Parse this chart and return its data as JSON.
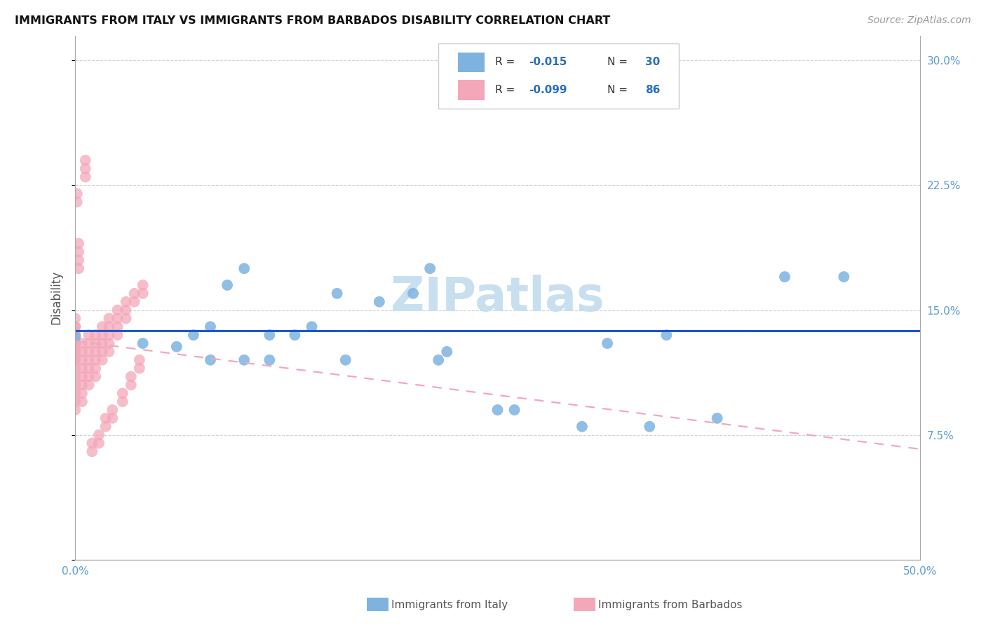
{
  "title": "IMMIGRANTS FROM ITALY VS IMMIGRANTS FROM BARBADOS DISABILITY CORRELATION CHART",
  "source": "Source: ZipAtlas.com",
  "xlabel_italy": "Immigrants from Italy",
  "xlabel_barbados": "Immigrants from Barbados",
  "ylabel": "Disability",
  "xlim": [
    0,
    0.5
  ],
  "ylim": [
    0,
    0.315
  ],
  "italy_color": "#7EB3E0",
  "barbados_color": "#F4A7B9",
  "regression_italy_color": "#1A56CC",
  "regression_barbados_color": "#F4A7B9",
  "italy_x": [
    0.0,
    0.04,
    0.06,
    0.07,
    0.08,
    0.08,
    0.09,
    0.1,
    0.1,
    0.115,
    0.115,
    0.13,
    0.14,
    0.155,
    0.16,
    0.2,
    0.21,
    0.215,
    0.22,
    0.26,
    0.28,
    0.3,
    0.315,
    0.34,
    0.35,
    0.38,
    0.455,
    0.18,
    0.25,
    0.42
  ],
  "italy_y": [
    0.134,
    0.13,
    0.128,
    0.135,
    0.14,
    0.12,
    0.165,
    0.175,
    0.12,
    0.135,
    0.12,
    0.135,
    0.14,
    0.16,
    0.12,
    0.16,
    0.175,
    0.12,
    0.125,
    0.09,
    0.3,
    0.08,
    0.13,
    0.08,
    0.135,
    0.085,
    0.17,
    0.155,
    0.09,
    0.17
  ],
  "barbados_x": [
    0.0,
    0.0,
    0.0,
    0.0,
    0.0,
    0.0,
    0.0,
    0.0,
    0.0,
    0.0,
    0.0,
    0.0,
    0.0,
    0.0,
    0.0,
    0.0,
    0.0,
    0.0,
    0.0,
    0.0,
    0.004,
    0.004,
    0.004,
    0.004,
    0.004,
    0.004,
    0.004,
    0.004,
    0.008,
    0.008,
    0.008,
    0.008,
    0.008,
    0.008,
    0.008,
    0.012,
    0.012,
    0.012,
    0.012,
    0.012,
    0.012,
    0.016,
    0.016,
    0.016,
    0.016,
    0.016,
    0.02,
    0.02,
    0.02,
    0.02,
    0.02,
    0.025,
    0.025,
    0.025,
    0.025,
    0.03,
    0.03,
    0.03,
    0.035,
    0.035,
    0.04,
    0.04,
    0.002,
    0.002,
    0.002,
    0.002,
    0.006,
    0.006,
    0.006,
    0.01,
    0.01,
    0.014,
    0.014,
    0.018,
    0.018,
    0.022,
    0.022,
    0.028,
    0.028,
    0.033,
    0.033,
    0.038,
    0.038,
    0.001,
    0.001
  ],
  "barbados_y": [
    0.13,
    0.125,
    0.135,
    0.14,
    0.145,
    0.12,
    0.115,
    0.11,
    0.105,
    0.1,
    0.095,
    0.09,
    0.13,
    0.125,
    0.12,
    0.14,
    0.135,
    0.13,
    0.125,
    0.12,
    0.13,
    0.125,
    0.12,
    0.115,
    0.11,
    0.105,
    0.1,
    0.095,
    0.135,
    0.13,
    0.125,
    0.12,
    0.115,
    0.11,
    0.105,
    0.135,
    0.13,
    0.125,
    0.12,
    0.115,
    0.11,
    0.14,
    0.135,
    0.13,
    0.125,
    0.12,
    0.145,
    0.14,
    0.135,
    0.13,
    0.125,
    0.15,
    0.145,
    0.14,
    0.135,
    0.155,
    0.15,
    0.145,
    0.16,
    0.155,
    0.165,
    0.16,
    0.19,
    0.185,
    0.18,
    0.175,
    0.24,
    0.235,
    0.23,
    0.07,
    0.065,
    0.075,
    0.07,
    0.085,
    0.08,
    0.09,
    0.085,
    0.1,
    0.095,
    0.11,
    0.105,
    0.12,
    0.115,
    0.22,
    0.215
  ],
  "watermark": "ZIPatlas",
  "watermark_color": "#C8DFF0"
}
